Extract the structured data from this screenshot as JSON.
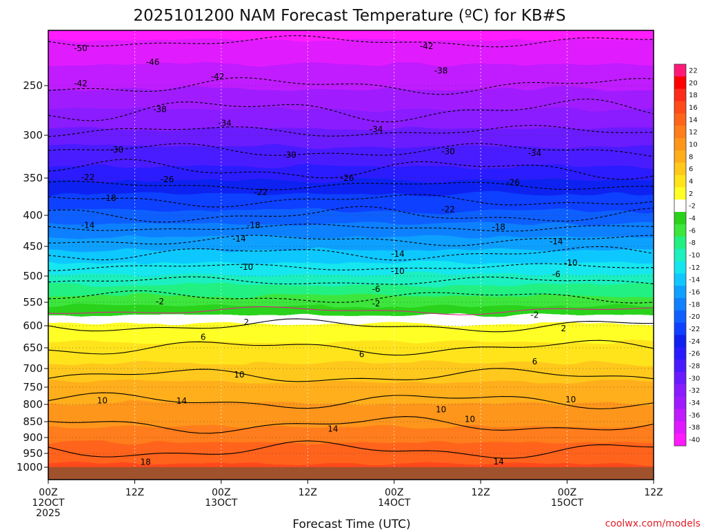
{
  "chart_data": {
    "type": "heatmap",
    "title": "2025101200 NAM Forecast Temperature (ºC) for KB#S",
    "xlabel": "Forecast Time (UTC)",
    "ylabel": "",
    "credit": "coolwx.com/models",
    "y_axis": {
      "unit": "hPa",
      "range": [
        200,
        1050
      ],
      "ticks": [
        250,
        300,
        350,
        400,
        450,
        500,
        550,
        600,
        650,
        700,
        750,
        800,
        850,
        900,
        950,
        1000
      ],
      "tick_labels": [
        "250",
        "300",
        "350",
        "400",
        "450",
        "500",
        "550",
        "600",
        "650",
        "700",
        "750",
        "800",
        "850",
        "900",
        "950",
        "1000"
      ]
    },
    "x_axis": {
      "unit": "forecast hour",
      "range": [
        0,
        84
      ],
      "ticks": [
        0,
        12,
        24,
        36,
        48,
        60,
        72,
        84
      ],
      "tick_labels": [
        [
          "00Z",
          "12OCT",
          "2025"
        ],
        [
          "12Z"
        ],
        [
          "00Z",
          "13OCT"
        ],
        [
          "12Z"
        ],
        [
          "00Z",
          "14OCT"
        ],
        [
          "12Z"
        ],
        [
          "00Z",
          "15OCT"
        ],
        [
          "12Z"
        ]
      ]
    },
    "colorbar": {
      "labels": [
        "22",
        "20",
        "18",
        "16",
        "14",
        "12",
        "10",
        "8",
        "6",
        "4",
        "2",
        "-2",
        "-4",
        "-6",
        "-8",
        "-10",
        "-12",
        "-14",
        "-16",
        "-18",
        "-20",
        "-22",
        "-24",
        "-26",
        "-28",
        "-30",
        "-32",
        "-34",
        "-36",
        "-38",
        "-40"
      ],
      "colors": [
        "#ff1a7a",
        "#ff0000",
        "#ff2a1a",
        "#ff4a1a",
        "#ff641a",
        "#ff7d1a",
        "#ff961a",
        "#ffae1a",
        "#ffc81a",
        "#ffe41a",
        "#ffff28",
        "#ffffff",
        "#2ad21a",
        "#3ce63c",
        "#22f082",
        "#1ef0c0",
        "#14e6ef",
        "#10c8ff",
        "#10a0ff",
        "#1080ff",
        "#1060ff",
        "#1040ff",
        "#1020f0",
        "#2a1aff",
        "#4a1aff",
        "#6a1aff",
        "#8a1aff",
        "#a01aff",
        "#c01aff",
        "#e01aff",
        "#ff1aff"
      ]
    },
    "ground": {
      "color": "#a0522d",
      "pressure": 1000
    },
    "contour_labels": [
      {
        "hour": 4.5,
        "p": 212,
        "text": "-50"
      },
      {
        "hour": 14.5,
        "p": 226,
        "text": "-46"
      },
      {
        "hour": 4.5,
        "p": 248,
        "text": "-42"
      },
      {
        "hour": 23.5,
        "p": 241,
        "text": "-42"
      },
      {
        "hour": 52.5,
        "p": 210,
        "text": "-42"
      },
      {
        "hour": 54.5,
        "p": 235,
        "text": "-38"
      },
      {
        "hour": 15.5,
        "p": 274,
        "text": "-38"
      },
      {
        "hour": 24.5,
        "p": 288,
        "text": "-34"
      },
      {
        "hour": 45.5,
        "p": 294,
        "text": "-34"
      },
      {
        "hour": 67.5,
        "p": 321,
        "text": "-34"
      },
      {
        "hour": 9.5,
        "p": 317,
        "text": "-30"
      },
      {
        "hour": 33.5,
        "p": 323,
        "text": "-30"
      },
      {
        "hour": 55.5,
        "p": 319,
        "text": "-30"
      },
      {
        "hour": 5.5,
        "p": 349,
        "text": "-22"
      },
      {
        "hour": 16.5,
        "p": 352,
        "text": "-26"
      },
      {
        "hour": 41.5,
        "p": 350,
        "text": "-26"
      },
      {
        "hour": 64.5,
        "p": 356,
        "text": "-26"
      },
      {
        "hour": 29.5,
        "p": 369,
        "text": "-22"
      },
      {
        "hour": 55.5,
        "p": 392,
        "text": "-22"
      },
      {
        "hour": 8.5,
        "p": 377,
        "text": "-18"
      },
      {
        "hour": 28.5,
        "p": 416,
        "text": "-18"
      },
      {
        "hour": 62.5,
        "p": 419,
        "text": "-18"
      },
      {
        "hour": 5.5,
        "p": 416,
        "text": "-14"
      },
      {
        "hour": 26.5,
        "p": 438,
        "text": "-14"
      },
      {
        "hour": 48.5,
        "p": 463,
        "text": "-14"
      },
      {
        "hour": 70.5,
        "p": 442,
        "text": "-14"
      },
      {
        "hour": 27.5,
        "p": 485,
        "text": "-10"
      },
      {
        "hour": 48.5,
        "p": 492,
        "text": "-10"
      },
      {
        "hour": 72.5,
        "p": 478,
        "text": "-10"
      },
      {
        "hour": 45.5,
        "p": 525,
        "text": "-6"
      },
      {
        "hour": 70.5,
        "p": 497,
        "text": "-6"
      },
      {
        "hour": 15.5,
        "p": 549,
        "text": "-2"
      },
      {
        "hour": 45.5,
        "p": 553,
        "text": "-2"
      },
      {
        "hour": 67.5,
        "p": 577,
        "text": "-2"
      },
      {
        "hour": 27.5,
        "p": 593,
        "text": "2"
      },
      {
        "hour": 71.5,
        "p": 606,
        "text": "2"
      },
      {
        "hour": 21.5,
        "p": 626,
        "text": "6"
      },
      {
        "hour": 43.5,
        "p": 666,
        "text": "6"
      },
      {
        "hour": 67.5,
        "p": 683,
        "text": "6"
      },
      {
        "hour": 26.5,
        "p": 717,
        "text": "10"
      },
      {
        "hour": 7.5,
        "p": 789,
        "text": "10"
      },
      {
        "hour": 54.5,
        "p": 815,
        "text": "10"
      },
      {
        "hour": 72.5,
        "p": 786,
        "text": "10"
      },
      {
        "hour": 58.5,
        "p": 843,
        "text": "10"
      },
      {
        "hour": 18.5,
        "p": 790,
        "text": "14"
      },
      {
        "hour": 39.5,
        "p": 873,
        "text": "14"
      },
      {
        "hour": 62.5,
        "p": 980,
        "text": "14"
      },
      {
        "hour": 13.5,
        "p": 981,
        "text": "18"
      }
    ],
    "isotherms_kind": "dashed below 0 ºC, solid above 0 ºC, magenta 0 ºC line"
  }
}
